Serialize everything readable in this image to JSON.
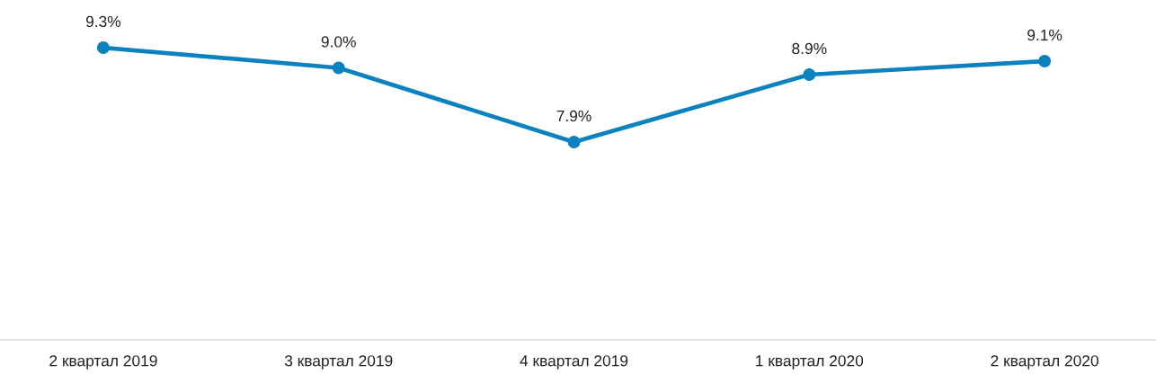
{
  "chart_data": {
    "type": "line",
    "categories": [
      "2 квартал 2019",
      "3 квартал 2019",
      "4 квартал 2019",
      "1 квартал 2020",
      "2 квартал 2020"
    ],
    "series": [
      {
        "color": "#0a82bf",
        "values": [
          9.3,
          9.0,
          7.9,
          8.9,
          9.1
        ],
        "value_labels": [
          "9.3%",
          "9.0%",
          "7.9%",
          "8.9%",
          "9.1%"
        ]
      }
    ],
    "marker": "circle",
    "line_style": "solid",
    "grid": false,
    "legend": false
  }
}
